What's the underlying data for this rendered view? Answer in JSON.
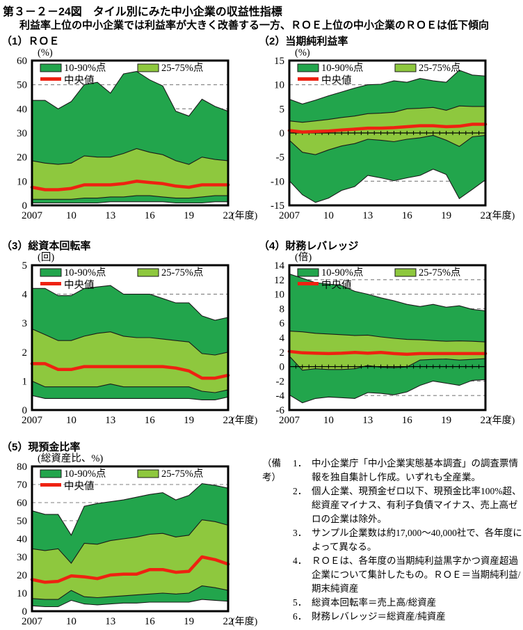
{
  "title": "第３－２－24図　タイル別にみた中小企業の収益性指標",
  "subtitle": "利益率上位の中小企業では利益率が大きく改善する一方、ＲＯＥ上位の中小企業のＲＯＥは低下傾向",
  "legend": {
    "outer": "10-90%点",
    "inner": "25-75%点",
    "median": "中央値"
  },
  "colors": {
    "band_outer_green": "#22a54c",
    "band_inner_green": "#8ec83e",
    "median_red": "#ee2211",
    "gridline_gray": "#7f7f7f",
    "frame_black": "#000000"
  },
  "x_axis": {
    "years": [
      2007,
      2008,
      2009,
      2010,
      2011,
      2012,
      2013,
      2014,
      2015,
      2016,
      2017,
      2018,
      2019,
      2020,
      2021,
      2022
    ],
    "tick_labels": [
      "2007",
      "10",
      "13",
      "16",
      "19",
      "22"
    ],
    "tick_years": [
      2007,
      2010,
      2013,
      2016,
      2019,
      2022
    ],
    "suffix": "(年度)"
  },
  "chart_data": [
    {
      "type": "area",
      "label": "（1）ＲＯＥ",
      "unit": "(%)",
      "ymin": 0,
      "ymax": 60,
      "yticks": [
        0,
        10,
        20,
        30,
        40,
        50,
        60
      ],
      "grid": [
        10,
        20,
        30,
        40,
        50
      ],
      "zero_line": false,
      "series": {
        "p90": [
          43.5,
          43.5,
          40,
          43,
          50,
          51,
          46.5,
          54.5,
          55.5,
          52,
          49.5,
          39,
          37,
          44,
          41,
          39
        ],
        "p75": [
          18.5,
          17.5,
          17,
          17.5,
          20.5,
          20,
          20,
          21.5,
          23.5,
          22,
          21,
          18.5,
          17,
          20,
          19,
          18.5
        ],
        "median": [
          7.5,
          6.5,
          6.5,
          7,
          8.5,
          8.5,
          8.5,
          9,
          10,
          9.5,
          9,
          8,
          7.5,
          8.5,
          8.5,
          8.5
        ],
        "p25": [
          2.5,
          2.5,
          2.5,
          2.5,
          3,
          3,
          3.5,
          3.5,
          4,
          4,
          3.5,
          3,
          3,
          3.5,
          4,
          4
        ],
        "p10": [
          1,
          1,
          1,
          1,
          1,
          1,
          1.5,
          1.5,
          1.5,
          1.5,
          1.5,
          1,
          1,
          1,
          1.5,
          1.5
        ]
      }
    },
    {
      "type": "area",
      "label": "（2）当期純利益率",
      "unit": "(%)",
      "ymin": -15,
      "ymax": 15,
      "yticks": [
        -15,
        -10,
        -5,
        0,
        5,
        10,
        15
      ],
      "grid": [
        -10,
        -5,
        5,
        10
      ],
      "zero_line": true,
      "series": {
        "p90": [
          7,
          6,
          6.8,
          7.7,
          8.5,
          9.3,
          10,
          10.1,
          10.8,
          10.5,
          11.3,
          10.8,
          10.5,
          13,
          12,
          11.8
        ],
        "p75": [
          2.5,
          2.2,
          2.5,
          2.8,
          3.2,
          3.5,
          4,
          4.1,
          4.3,
          5,
          5.1,
          5.3,
          4.7,
          5.6,
          5.5,
          5.5
        ],
        "median": [
          0.5,
          0.2,
          0.3,
          0.4,
          0.6,
          0.8,
          1,
          1,
          1.1,
          1.3,
          1.5,
          1.5,
          1.3,
          1.4,
          1.8,
          1.8
        ],
        "p25": [
          -1.5,
          -4,
          -4.5,
          -3.5,
          -2.7,
          -2.2,
          -1.3,
          -1.5,
          -1.8,
          -1.3,
          -1,
          -0.5,
          -1.5,
          -2.8,
          -0.8,
          -0.5
        ],
        "p10": [
          -9.9,
          -12.8,
          -14.4,
          -13.5,
          -11.9,
          -11.1,
          -8.8,
          -9.3,
          -9.9,
          -9.3,
          -8.8,
          -7.5,
          -8.6,
          -13.6,
          -11.7,
          -9.7
        ]
      }
    },
    {
      "type": "area",
      "label": "（3）総資本回転率",
      "unit": "(回)",
      "ymin": 0,
      "ymax": 5,
      "yticks": [
        0,
        1,
        2,
        3,
        4,
        5
      ],
      "grid": [
        1,
        2,
        3,
        4
      ],
      "zero_line": false,
      "series": {
        "p90": [
          4.2,
          4.2,
          3.95,
          3.95,
          4.2,
          4.25,
          4.3,
          4.0,
          4.0,
          4.0,
          3.85,
          3.7,
          3.7,
          3.25,
          3.1,
          3.2
        ],
        "p75": [
          2.8,
          2.6,
          2.4,
          2.4,
          2.55,
          2.65,
          2.7,
          2.55,
          2.5,
          2.5,
          2.45,
          2.4,
          2.35,
          1.95,
          1.9,
          2.0
        ],
        "median": [
          1.6,
          1.6,
          1.4,
          1.4,
          1.5,
          1.5,
          1.5,
          1.5,
          1.5,
          1.5,
          1.5,
          1.45,
          1.35,
          1.1,
          1.1,
          1.2
        ],
        "p25": [
          1.0,
          0.8,
          0.8,
          0.8,
          0.8,
          0.8,
          0.9,
          0.8,
          0.8,
          0.8,
          0.8,
          0.8,
          0.8,
          0.65,
          0.6,
          0.7
        ],
        "p10": [
          0.5,
          0.4,
          0.4,
          0.4,
          0.4,
          0.4,
          0.4,
          0.4,
          0.4,
          0.4,
          0.4,
          0.4,
          0.4,
          0.35,
          0.35,
          0.45
        ]
      }
    },
    {
      "type": "area",
      "label": "（4）財務レバレッジ",
      "unit": "(倍)",
      "ymin": -6,
      "ymax": 14,
      "yticks": [
        -6,
        -4,
        -2,
        0,
        2,
        4,
        6,
        8,
        10,
        12,
        14
      ],
      "grid": [
        -4,
        -2,
        2,
        4,
        6,
        8,
        10,
        12
      ],
      "zero_line": true,
      "series": {
        "p90": [
          12.8,
          12.2,
          11.6,
          11.4,
          11.2,
          10.4,
          10.0,
          9.5,
          9.1,
          8.6,
          8.3,
          8.6,
          8.2,
          8.4,
          7.9,
          7.7
        ],
        "p75": [
          4.9,
          4.8,
          4.6,
          4.5,
          4.4,
          4.3,
          4.35,
          4.1,
          3.9,
          3.75,
          3.7,
          3.6,
          3.5,
          3.55,
          3.5,
          3.4
        ],
        "median": [
          2.1,
          1.9,
          1.85,
          1.8,
          1.85,
          1.95,
          1.85,
          1.95,
          1.8,
          1.7,
          1.8,
          1.8,
          1.8,
          1.8,
          1.8,
          1.8
        ],
        "p25": [
          1.45,
          -0.5,
          -0.3,
          -0.4,
          -0.4,
          -0.3,
          0.15,
          -0.1,
          -0.15,
          -0.05,
          0.9,
          1.0,
          1.05,
          0.9,
          1.0,
          1.1
        ],
        "p10": [
          -3.9,
          -5.0,
          -4.4,
          -4.2,
          -4.3,
          -4.4,
          -3.6,
          -3.7,
          -3.9,
          -3.5,
          -2.6,
          -2.0,
          -2.3,
          -2.6,
          -1.9,
          -1.8
        ]
      }
    },
    {
      "type": "area",
      "label": "（5）現預金比率",
      "unit": "(総資産比、%)",
      "ymin": 0,
      "ymax": 80,
      "yticks": [
        0,
        10,
        20,
        30,
        40,
        50,
        60,
        70,
        80
      ],
      "grid": [
        10,
        20,
        30,
        40,
        50,
        60,
        70
      ],
      "zero_line": false,
      "series": {
        "p90": [
          55.5,
          53.5,
          53.5,
          42,
          58,
          59.5,
          60.5,
          61.5,
          63,
          64.5,
          65.5,
          61.5,
          64,
          70.5,
          69.5,
          68
        ],
        "p75": [
          34.5,
          33.5,
          34.5,
          26.5,
          37.5,
          37,
          39,
          40,
          41,
          42.5,
          43,
          41,
          42,
          50.5,
          49.5,
          47.5
        ],
        "median": [
          17.5,
          16,
          16.5,
          19.5,
          19,
          18,
          20,
          20.5,
          20.5,
          23,
          23,
          21.5,
          22,
          30,
          28.5,
          26
        ],
        "p25": [
          7,
          6.5,
          6.5,
          11.5,
          8,
          7.5,
          8,
          8.5,
          9,
          9.5,
          10,
          9.5,
          10,
          14,
          13,
          11.5
        ],
        "p10": [
          3,
          2.5,
          2.5,
          6,
          4,
          3.5,
          4,
          4.5,
          4.5,
          5,
          5,
          5,
          5,
          6.5,
          6,
          5.5
        ]
      }
    }
  ],
  "notes": {
    "label": "（備考）",
    "items": [
      {
        "num": "1．",
        "text": "中小企業庁「中小企業実態基本調査」の調査票情報を独自集計し作成。いずれも全産業。"
      },
      {
        "num": "2．",
        "text": "個人企業、現預金ゼロ以下、現預金比率100%超、総資産マイナス、有利子負債マイナス、売上高ゼロの企業は除外。"
      },
      {
        "num": "3．",
        "text": "サンプル企業数は約17,000～40,000社で、各年度によって異なる。"
      },
      {
        "num": "4．",
        "text": "ＲＯＥは、各年度の当期純利益黒字かつ資産超過企業について集計したもの。ＲＯＥ＝当期純利益/期末純資産"
      },
      {
        "num": "5．",
        "text": "総資本回転率＝売上高/総資産"
      },
      {
        "num": "6．",
        "text": "財務レバレッジ＝総資産/純資産"
      }
    ]
  }
}
